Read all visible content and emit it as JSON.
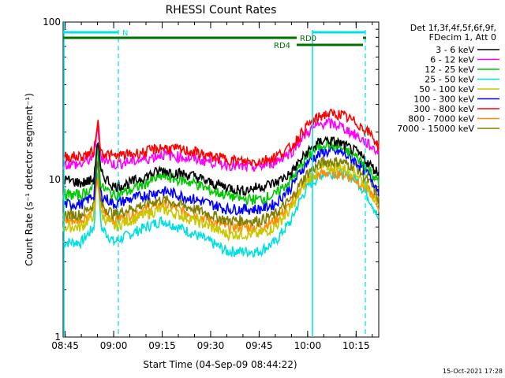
{
  "title": "RHESSI Count Rates",
  "xlabel": "Start Time (04-Sep-09 08:44:22)",
  "ylabel": "Count Rate (s⁻¹ detector segment⁻¹)",
  "footer_date": "15-Oct-2021 17:28",
  "legend": {
    "line1": "Det 1f,3f,4f,5f,6f,9f,",
    "line2": "FDecim 1, Att 0"
  },
  "bars": {
    "n_label": "N",
    "rd0_label": "RD0",
    "rd4_label": "RD4"
  },
  "chart_data": {
    "type": "line",
    "title": "RHESSI Count Rates",
    "xlabel": "Start Time (04-Sep-09 08:44:22)",
    "ylabel": "Count Rate (s⁻¹ detector segment⁻¹)",
    "x_range": [
      "08:44:22",
      "10:22:00"
    ],
    "y_range": [
      1,
      100
    ],
    "y_scale": "log",
    "x_ticks": [
      "08:45",
      "09:00",
      "09:15",
      "09:30",
      "09:45",
      "10:00",
      "10:15"
    ],
    "y_ticks": [
      "1",
      "10",
      "100"
    ],
    "grid": false,
    "legend_position": "right",
    "times": [
      "08:45",
      "08:50",
      "08:54",
      "08:55",
      "08:56",
      "09:00",
      "09:05",
      "09:10",
      "09:15",
      "09:20",
      "09:25",
      "09:30",
      "09:35",
      "09:40",
      "09:45",
      "09:50",
      "09:55",
      "10:00",
      "10:05",
      "10:10",
      "10:15",
      "10:20",
      "10:22"
    ],
    "series": [
      {
        "name": "3 - 6 keV",
        "color": "#000000",
        "values": [
          10,
          9.5,
          10,
          18,
          11,
          9,
          9.5,
          10.5,
          11.5,
          11,
          10.5,
          9.5,
          9,
          8.5,
          9,
          9.5,
          11,
          15,
          18,
          17,
          15,
          12,
          11
        ]
      },
      {
        "name": "6 - 12 keV",
        "color": "#ff00ff",
        "values": [
          12.5,
          12.5,
          14,
          22,
          14,
          12.5,
          13,
          13.5,
          14.5,
          14,
          13.5,
          13,
          12.5,
          12,
          12,
          13,
          15,
          20,
          23,
          22,
          19,
          16,
          15
        ]
      },
      {
        "name": "12 - 25 keV",
        "color": "#00c800",
        "values": [
          8,
          8,
          9,
          17,
          9,
          8,
          8.5,
          9.5,
          10.5,
          10,
          9.5,
          8.5,
          8,
          7.5,
          7.5,
          8,
          10,
          14,
          17,
          16,
          14,
          11,
          9.5
        ]
      },
      {
        "name": "25 - 50 keV",
        "color": "#00e0e0",
        "values": [
          4,
          4,
          5,
          12,
          5,
          4,
          4.5,
          5,
          5.5,
          5,
          4.5,
          4,
          3.5,
          3.5,
          3.5,
          4,
          5.5,
          9,
          11,
          11,
          10,
          7,
          5.5
        ]
      },
      {
        "name": "50 - 100 keV",
        "color": "#c8c800",
        "values": [
          5,
          5,
          6,
          14,
          6,
          5,
          5.5,
          6,
          6.5,
          6,
          5.5,
          5,
          4.5,
          4.5,
          4.5,
          5,
          6.5,
          10,
          12,
          12,
          11,
          8,
          6.5
        ]
      },
      {
        "name": "100 - 300 keV",
        "color": "#0000ff",
        "values": [
          7,
          7,
          8,
          16,
          8,
          7,
          7.5,
          8,
          8.5,
          8,
          7.5,
          7,
          6.5,
          6.5,
          6.5,
          7,
          9,
          13,
          15,
          15,
          13,
          10,
          8.5
        ]
      },
      {
        "name": "300 - 800 keV",
        "color": "#ff0000",
        "values": [
          14,
          14,
          15,
          24,
          15,
          14,
          14.5,
          15,
          16,
          15.5,
          15,
          14,
          13.5,
          13,
          13,
          14,
          16,
          22,
          26,
          26,
          23,
          19,
          16
        ]
      },
      {
        "name": "800 - 7000 keV",
        "color": "#ff8c00",
        "values": [
          5.5,
          5.5,
          6.5,
          10,
          6.5,
          5.5,
          6,
          6.5,
          7,
          6.5,
          6,
          5.5,
          5,
          5,
          5,
          5.5,
          7,
          10,
          11,
          11,
          10,
          8,
          6.5
        ]
      },
      {
        "name": "7000 - 15000 keV",
        "color": "#808000",
        "values": [
          6,
          6,
          7,
          13,
          7,
          6,
          6.5,
          7,
          7.5,
          7,
          6.5,
          6,
          5.5,
          5.5,
          5.5,
          6,
          7.5,
          11,
          13,
          13,
          12,
          9,
          7.5
        ]
      }
    ]
  }
}
